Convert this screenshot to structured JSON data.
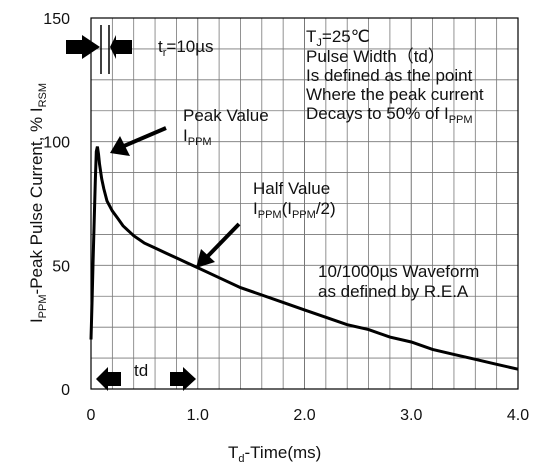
{
  "chart_data": {
    "type": "line",
    "title": "",
    "xlabel": {
      "main": "T",
      "sub": "d",
      "rest": "-Time(ms)"
    },
    "ylabel": {
      "p1": "I",
      "s1": "PPM",
      "p2": "-Peak Pulse Current, % I",
      "s2": "RSM"
    },
    "xlim": [
      0,
      4.0
    ],
    "ylim": [
      0,
      150
    ],
    "x_ticks": [
      0,
      1.0,
      2.0,
      3.0,
      4.0
    ],
    "x_tick_labels": [
      "0",
      "1.0",
      "2.0",
      "3.0",
      "4.0"
    ],
    "y_ticks": [
      0,
      50,
      100,
      150
    ],
    "y_tick_labels": [
      "0",
      "50",
      "100",
      "150"
    ],
    "grid": true,
    "series": [
      {
        "x": [
          0,
          0.01,
          0.02,
          0.03,
          0.04,
          0.05,
          0.06,
          0.07,
          0.08,
          0.1,
          0.12,
          0.15,
          0.2,
          0.25,
          0.3,
          0.4,
          0.5,
          0.6,
          0.7,
          0.8,
          0.9,
          1.0,
          1.2,
          1.4,
          1.6,
          1.8,
          2.0,
          2.2,
          2.4,
          2.6,
          2.8,
          3.0,
          3.2,
          3.4,
          3.6,
          3.8,
          4.0
        ],
        "y": [
          20,
          36,
          52,
          68,
          84,
          96,
          98,
          95,
          91,
          85,
          81,
          76,
          72,
          69,
          66,
          62,
          59,
          57,
          55,
          53,
          51,
          49,
          45,
          41,
          38,
          35,
          32,
          29,
          26,
          24,
          21,
          19,
          16,
          14,
          12,
          10,
          8
        ]
      }
    ],
    "annotations": {
      "tr": {
        "p1": "t",
        "s1": "r",
        "p2": "=10µs"
      },
      "tj": {
        "p1": "T",
        "s1": "J",
        "p2": "=25℃"
      },
      "pulse_width": "Pulse Width（td）",
      "defined_line1": "Is defined as the point",
      "defined_line2": "Where the peak current",
      "decays": {
        "p1": "Decays to 50% of I",
        "s1": "PPM"
      },
      "peak_value": "Peak Value",
      "peak_ippm": {
        "p1": "I",
        "s1": "PPM"
      },
      "half_value": "Half Value",
      "half_ippm": {
        "p1": "I",
        "s1": "PPM",
        "p2": "(I",
        "s2": "PPM",
        "p3": "/2)"
      },
      "waveform1": "10/1000µs Waveform",
      "waveform2": "as defined by R.E.A",
      "td": "td"
    }
  }
}
